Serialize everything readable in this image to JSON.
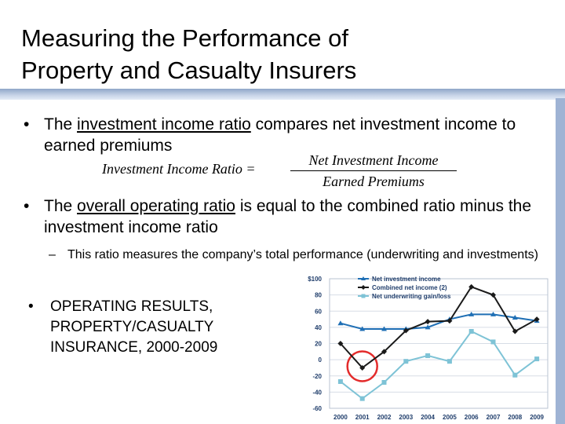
{
  "slide": {
    "title_line1": "Measuring the Performance of",
    "title_line2": "Property and Casualty Insurers",
    "bullet1_prefix": "The ",
    "bullet1_term": "investment income ratio",
    "bullet1_suffix": " compares net investment income to earned premiums",
    "formula_lhs": "Investment Income Ratio =",
    "formula_numerator": "Net Investment Income",
    "formula_denominator": "Earned Premiums",
    "bullet2_prefix": "The ",
    "bullet2_term": "overall operating ratio",
    "bullet2_suffix": " is equal to the combined ratio minus the investment income ratio",
    "sub_bullet": "This ratio measures the company’s total performance (underwriting and investments)",
    "bullet3": "OPERATING RESULTS, PROPERTY/CASUALTY INSURANCE, 2000-2009",
    "bullet_glyph": "•",
    "dash_glyph": "–"
  },
  "chart_data": {
    "type": "line",
    "title": "",
    "xlabel": "",
    "ylabel": "",
    "x": [
      "2000",
      "2001",
      "2002",
      "2003",
      "2004",
      "2005",
      "2006",
      "2007",
      "2008",
      "2009"
    ],
    "ylim": [
      -60,
      100
    ],
    "yticks": [
      "$100",
      "80",
      "60",
      "40",
      "20",
      "0",
      "-20",
      "-40",
      "-60"
    ],
    "ytick_values": [
      100,
      80,
      60,
      40,
      20,
      0,
      -20,
      -40,
      -60
    ],
    "legend_position": "top-left",
    "series": [
      {
        "name": "Net investment income",
        "color": "#1f6fb5",
        "marker": "triangle",
        "values": [
          45,
          38,
          38,
          38,
          40,
          50,
          56,
          56,
          52,
          48
        ]
      },
      {
        "name": "Combined net income (2)",
        "color": "#1a1a1a",
        "marker": "diamond",
        "values": [
          20,
          -10,
          10,
          36,
          47,
          48,
          90,
          80,
          35,
          50
        ]
      },
      {
        "name": "Net underwriting gain/loss",
        "color": "#7ec3d6",
        "marker": "square",
        "values": [
          -27,
          -48,
          -28,
          -2,
          5,
          -2,
          35,
          22,
          -19,
          1
        ]
      }
    ],
    "annotation": {
      "type": "circle",
      "color": "#e32b2b",
      "category": "2001"
    }
  }
}
